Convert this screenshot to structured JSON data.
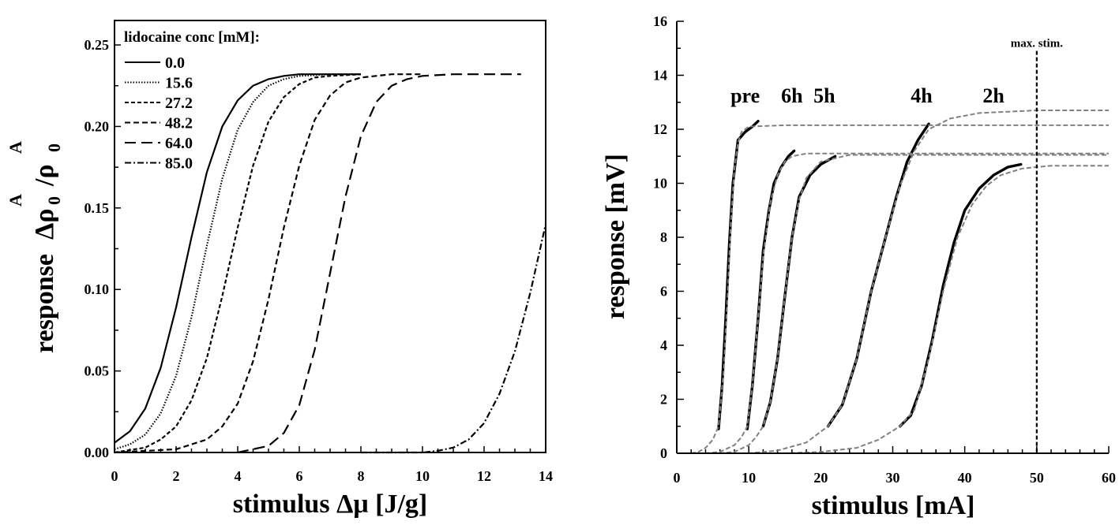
{
  "chart_data": [
    {
      "type": "line",
      "xlabel": "stimulus Δμ [J/g]",
      "ylabel": {
        "word": "response",
        "delta": "Δ",
        "rho": "ρ",
        "sub": "0",
        "sup": "A",
        "slash": "/"
      },
      "xlim": [
        0,
        14
      ],
      "ylim": [
        0,
        0.265
      ],
      "xticks": [
        0,
        2,
        4,
        6,
        8,
        10,
        12,
        14
      ],
      "xtick_labels": [
        "0",
        "2",
        "4",
        "6",
        "8",
        "10",
        "12",
        "14"
      ],
      "yticks": [
        0.0,
        0.05,
        0.1,
        0.15,
        0.2,
        0.25
      ],
      "ytick_labels": [
        "0.00",
        "0.05",
        "0.10",
        "0.15",
        "0.20",
        "0.25"
      ],
      "legend_title": "lidocaine conc [mM]:",
      "legend_position": "top-left",
      "series": [
        {
          "name": "0.0",
          "style": "solid",
          "x": [
            0,
            0.5,
            1,
            1.5,
            2,
            2.5,
            3,
            3.5,
            4,
            4.5,
            5,
            5.5,
            6,
            7,
            8
          ],
          "y": [
            0.006,
            0.013,
            0.027,
            0.052,
            0.089,
            0.132,
            0.172,
            0.2,
            0.216,
            0.225,
            0.229,
            0.231,
            0.232,
            0.232,
            0.232
          ]
        },
        {
          "name": "15.6",
          "style": "dotted",
          "x": [
            0,
            0.5,
            1,
            1.5,
            2,
            2.5,
            3,
            3.5,
            4,
            4.5,
            5,
            5.5,
            6,
            7,
            8
          ],
          "y": [
            0.002,
            0.005,
            0.011,
            0.024,
            0.047,
            0.083,
            0.127,
            0.168,
            0.198,
            0.215,
            0.225,
            0.229,
            0.231,
            0.232,
            0.232
          ]
        },
        {
          "name": "27.2",
          "style": "short-dash",
          "x": [
            0,
            1,
            1.5,
            2,
            2.5,
            3,
            3.5,
            4,
            4.5,
            5,
            5.5,
            6,
            6.5,
            7,
            8
          ],
          "y": [
            0.0,
            0.003,
            0.008,
            0.016,
            0.032,
            0.058,
            0.096,
            0.138,
            0.176,
            0.203,
            0.218,
            0.226,
            0.23,
            0.231,
            0.232
          ]
        },
        {
          "name": "48.2",
          "style": "dash",
          "x": [
            0,
            2,
            3,
            3.5,
            4,
            4.5,
            5,
            5.5,
            6,
            6.5,
            7,
            7.5,
            8,
            9,
            10
          ],
          "y": [
            0.0,
            0.002,
            0.008,
            0.016,
            0.03,
            0.056,
            0.094,
            0.138,
            0.176,
            0.204,
            0.219,
            0.227,
            0.23,
            0.232,
            0.232
          ]
        },
        {
          "name": "64.0",
          "style": "long-dash",
          "x": [
            4,
            5,
            5.5,
            6,
            6.5,
            7,
            7.5,
            8,
            8.5,
            9,
            9.5,
            10,
            11,
            13.2
          ],
          "y": [
            0.0,
            0.004,
            0.012,
            0.029,
            0.063,
            0.11,
            0.157,
            0.194,
            0.215,
            0.225,
            0.229,
            0.231,
            0.232,
            0.232
          ]
        },
        {
          "name": "85.0",
          "style": "dash-dot",
          "x": [
            8,
            10,
            10.5,
            11,
            11.5,
            12,
            12.5,
            13,
            13.5,
            14
          ],
          "y": [
            0.0,
            0.0,
            0.001,
            0.003,
            0.008,
            0.018,
            0.036,
            0.062,
            0.098,
            0.14
          ]
        }
      ]
    },
    {
      "type": "line",
      "xlabel": "stimulus [mA]",
      "ylabel": "response [mV]",
      "xlim": [
        0,
        60
      ],
      "ylim": [
        0,
        16
      ],
      "xticks": [
        0,
        10,
        20,
        30,
        40,
        50,
        60
      ],
      "xtick_labels": [
        "0",
        "10",
        "20",
        "30",
        "40",
        "50",
        "60"
      ],
      "yticks": [
        0,
        2,
        4,
        6,
        8,
        10,
        12,
        14,
        16
      ],
      "ytick_labels": [
        "0",
        "2",
        "4",
        "6",
        "8",
        "10",
        "12",
        "14",
        "16"
      ],
      "vline": {
        "x": 50,
        "label": "max. stim."
      },
      "annotations": [
        {
          "text": "pre",
          "x": 9.5,
          "y": 13.0
        },
        {
          "text": "6h",
          "x": 16.0,
          "y": 13.0
        },
        {
          "text": "5h",
          "x": 20.5,
          "y": 13.0
        },
        {
          "text": "4h",
          "x": 34.0,
          "y": 13.0
        },
        {
          "text": "2h",
          "x": 44.0,
          "y": 13.0
        }
      ],
      "series": [
        {
          "label": "pre",
          "measured": {
            "x": [
              5.8,
              6.3,
              6.8,
              7.3,
              7.8,
              8.5,
              9.5,
              10.5,
              11.3
            ],
            "y": [
              0.9,
              2.5,
              5.0,
              7.8,
              10.0,
              11.6,
              11.9,
              12.1,
              12.3
            ]
          },
          "fit": {
            "x": [
              0,
              2,
              3,
              4,
              5,
              5.8,
              6.5,
              7,
              7.5,
              8,
              8.5,
              9,
              10,
              15,
              30,
              60
            ],
            "y": [
              0,
              0,
              0.05,
              0.2,
              0.5,
              1.0,
              3.0,
              5.5,
              8.5,
              10.5,
              11.5,
              11.9,
              12.1,
              12.15,
              12.15,
              12.15
            ]
          }
        },
        {
          "label": "6h",
          "measured": {
            "x": [
              9.8,
              10.5,
              11.3,
              12.0,
              12.8,
              13.5,
              14.5,
              15.5,
              16.3
            ],
            "y": [
              0.9,
              2.5,
              5.0,
              7.5,
              9.0,
              10.0,
              10.6,
              11.0,
              11.2
            ]
          },
          "fit": {
            "x": [
              0,
              4,
              6,
              8,
              9,
              9.8,
              10.5,
              11.3,
              12,
              13,
              14,
              15,
              16,
              18,
              25,
              60
            ],
            "y": [
              0,
              0,
              0.05,
              0.3,
              0.6,
              1.0,
              2.5,
              5.0,
              7.3,
              9.3,
              10.3,
              10.8,
              11.0,
              11.1,
              11.1,
              11.1
            ]
          }
        },
        {
          "label": "5h",
          "measured": {
            "x": [
              12.0,
              13.0,
              14.0,
              15.0,
              16.0,
              17.0,
              18.5,
              20.0,
              22.0
            ],
            "y": [
              1.0,
              1.9,
              3.5,
              5.8,
              8.0,
              9.5,
              10.3,
              10.7,
              11.0
            ]
          },
          "fit": {
            "x": [
              0,
              6,
              8,
              10,
              11,
              12,
              13,
              14,
              15,
              16,
              17,
              18,
              20,
              24,
              30,
              60
            ],
            "y": [
              0,
              0,
              0.05,
              0.3,
              0.6,
              1.0,
              1.9,
              3.5,
              5.8,
              8.0,
              9.4,
              10.2,
              10.8,
              11.05,
              11.05,
              11.05
            ]
          }
        },
        {
          "label": "4h",
          "measured": {
            "x": [
              21.0,
              23.0,
              25.0,
              27.0,
              29.0,
              30.5,
              32.0,
              33.5,
              35.0
            ],
            "y": [
              1.0,
              1.8,
              3.5,
              6.0,
              8.0,
              9.5,
              10.8,
              11.6,
              12.2
            ]
          },
          "fit": {
            "x": [
              0,
              10,
              14,
              18,
              21,
              23,
              25,
              27,
              29,
              31,
              33,
              35,
              38,
              42,
              50,
              60
            ],
            "y": [
              0,
              0,
              0.1,
              0.4,
              1.0,
              1.8,
              3.5,
              6.0,
              8.0,
              9.9,
              11.2,
              12.0,
              12.4,
              12.6,
              12.7,
              12.7
            ]
          }
        },
        {
          "label": "2h",
          "measured": {
            "x": [
              31.0,
              32.5,
              34.0,
              35.5,
              37.0,
              38.5,
              40.0,
              42.0,
              44.0,
              46.0,
              47.8
            ],
            "y": [
              1.0,
              1.4,
              2.5,
              4.2,
              6.2,
              7.8,
              9.0,
              9.8,
              10.3,
              10.6,
              10.7
            ]
          },
          "fit": {
            "x": [
              0,
              15,
              20,
              25,
              28,
              31,
              33,
              35,
              37,
              39,
              41,
              43,
              45,
              48,
              52,
              60
            ],
            "y": [
              0,
              0,
              0.05,
              0.2,
              0.5,
              1.0,
              1.6,
              3.5,
              6.0,
              8.0,
              9.2,
              9.9,
              10.3,
              10.55,
              10.65,
              10.65
            ]
          }
        }
      ]
    }
  ]
}
